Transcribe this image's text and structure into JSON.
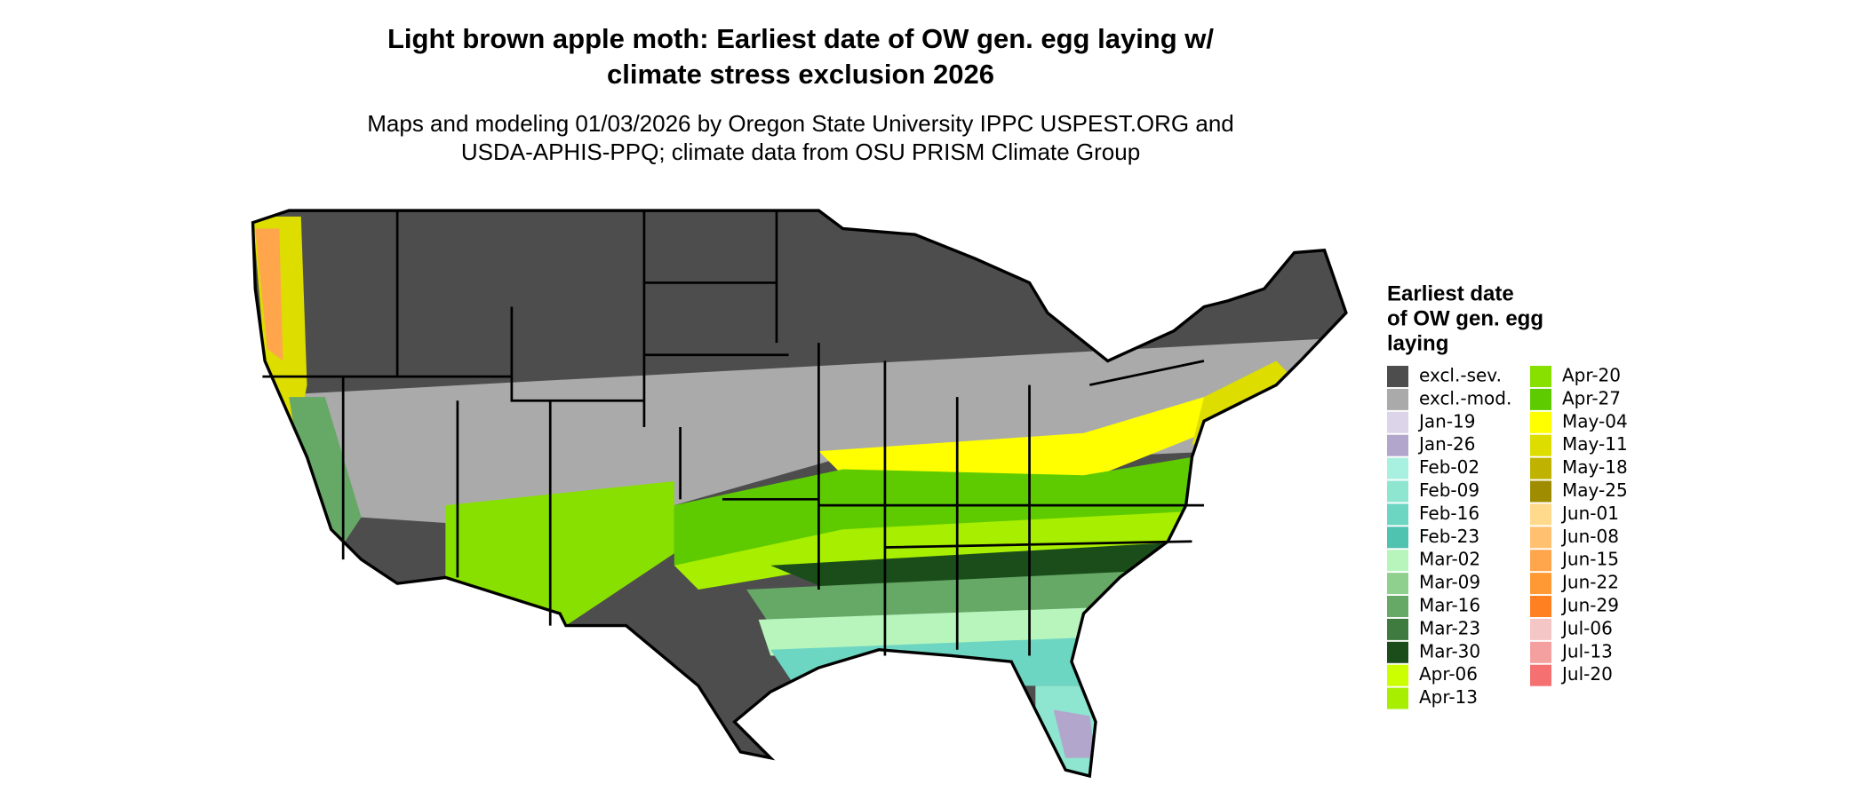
{
  "title": [
    "Light brown apple moth: Earliest date of OW gen. egg laying w/",
    "climate stress exclusion 2026"
  ],
  "subtitle": [
    "Maps and modeling 01/03/2026 by Oregon State University IPPC USPEST.ORG and",
    "USDA-APHIS-PPQ; climate data from OSU PRISM Climate Group"
  ],
  "legend": {
    "title": [
      "Earliest date",
      "of OW gen. egg",
      "laying"
    ],
    "items": [
      {
        "label": "excl.-sev.",
        "color": "#4d4d4d"
      },
      {
        "label": "excl.-mod.",
        "color": "#aaaaaa"
      },
      {
        "label": "Jan-19",
        "color": "#dcd5ea"
      },
      {
        "label": "Jan-26",
        "color": "#b2a6cc"
      },
      {
        "label": "Feb-02",
        "color": "#a8f0e0"
      },
      {
        "label": "Feb-09",
        "color": "#8ee6d0"
      },
      {
        "label": "Feb-16",
        "color": "#6dd6c2"
      },
      {
        "label": "Feb-23",
        "color": "#4fc2b0"
      },
      {
        "label": "Mar-02",
        "color": "#b7f5bd"
      },
      {
        "label": "Mar-09",
        "color": "#8fd08f"
      },
      {
        "label": "Mar-16",
        "color": "#66a866"
      },
      {
        "label": "Mar-23",
        "color": "#3f7a3f"
      },
      {
        "label": "Mar-30",
        "color": "#1b4d1b"
      },
      {
        "label": "Apr-06",
        "color": "#ccff00"
      },
      {
        "label": "Apr-13",
        "color": "#a8ee00"
      },
      {
        "label": "Apr-20",
        "color": "#88e000"
      },
      {
        "label": "Apr-27",
        "color": "#5ecb00"
      },
      {
        "label": "May-04",
        "color": "#ffff00"
      },
      {
        "label": "May-11",
        "color": "#dddd00"
      },
      {
        "label": "May-18",
        "color": "#bfb200"
      },
      {
        "label": "May-25",
        "color": "#a08c00"
      },
      {
        "label": "Jun-01",
        "color": "#ffd98c"
      },
      {
        "label": "Jun-08",
        "color": "#ffc070"
      },
      {
        "label": "Jun-15",
        "color": "#ffa64d"
      },
      {
        "label": "Jun-22",
        "color": "#ff9933"
      },
      {
        "label": "Jun-29",
        "color": "#ff8020"
      },
      {
        "label": "Jul-06",
        "color": "#f5c6c6"
      },
      {
        "label": "Jul-13",
        "color": "#f5a0a0"
      },
      {
        "label": "Jul-20",
        "color": "#f57070"
      }
    ]
  }
}
